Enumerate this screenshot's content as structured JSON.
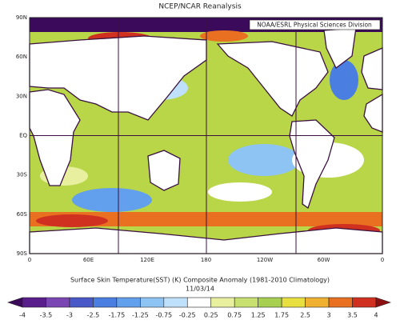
{
  "title": "NCEP/NCAR Reanalysis",
  "credit": "NOAA/ESRL Physical Sciences Division",
  "map": {
    "lat_labels": [
      "90N",
      "60N",
      "30N",
      "EQ",
      "30S",
      "60S",
      "90S"
    ],
    "lon_labels": [
      "0",
      "60E",
      "120E",
      "180",
      "120W",
      "60W",
      "0"
    ]
  },
  "caption": {
    "line1": "Surface Skin Temperature(SST) (K) Composite Anomaly (1981-2010 Climatology)",
    "line2": "11/03/14"
  },
  "colorbar": {
    "ticks": [
      -4,
      -3.5,
      -3,
      -2.5,
      -1.75,
      -1.25,
      -0.75,
      -0.25,
      0.25,
      0.75,
      1.25,
      1.75,
      2.5,
      3,
      3.5,
      4
    ],
    "colors": [
      "#3c0a5a",
      "#5a1e8c",
      "#7a46b4",
      "#4a58c8",
      "#4a7ee0",
      "#62a0ee",
      "#8ec4f4",
      "#bee0fa",
      "#ffffff",
      "#e8f0a0",
      "#c8e070",
      "#a8d050",
      "#e8e040",
      "#f0b030",
      "#e87020",
      "#d03020",
      "#8c1010"
    ]
  }
}
